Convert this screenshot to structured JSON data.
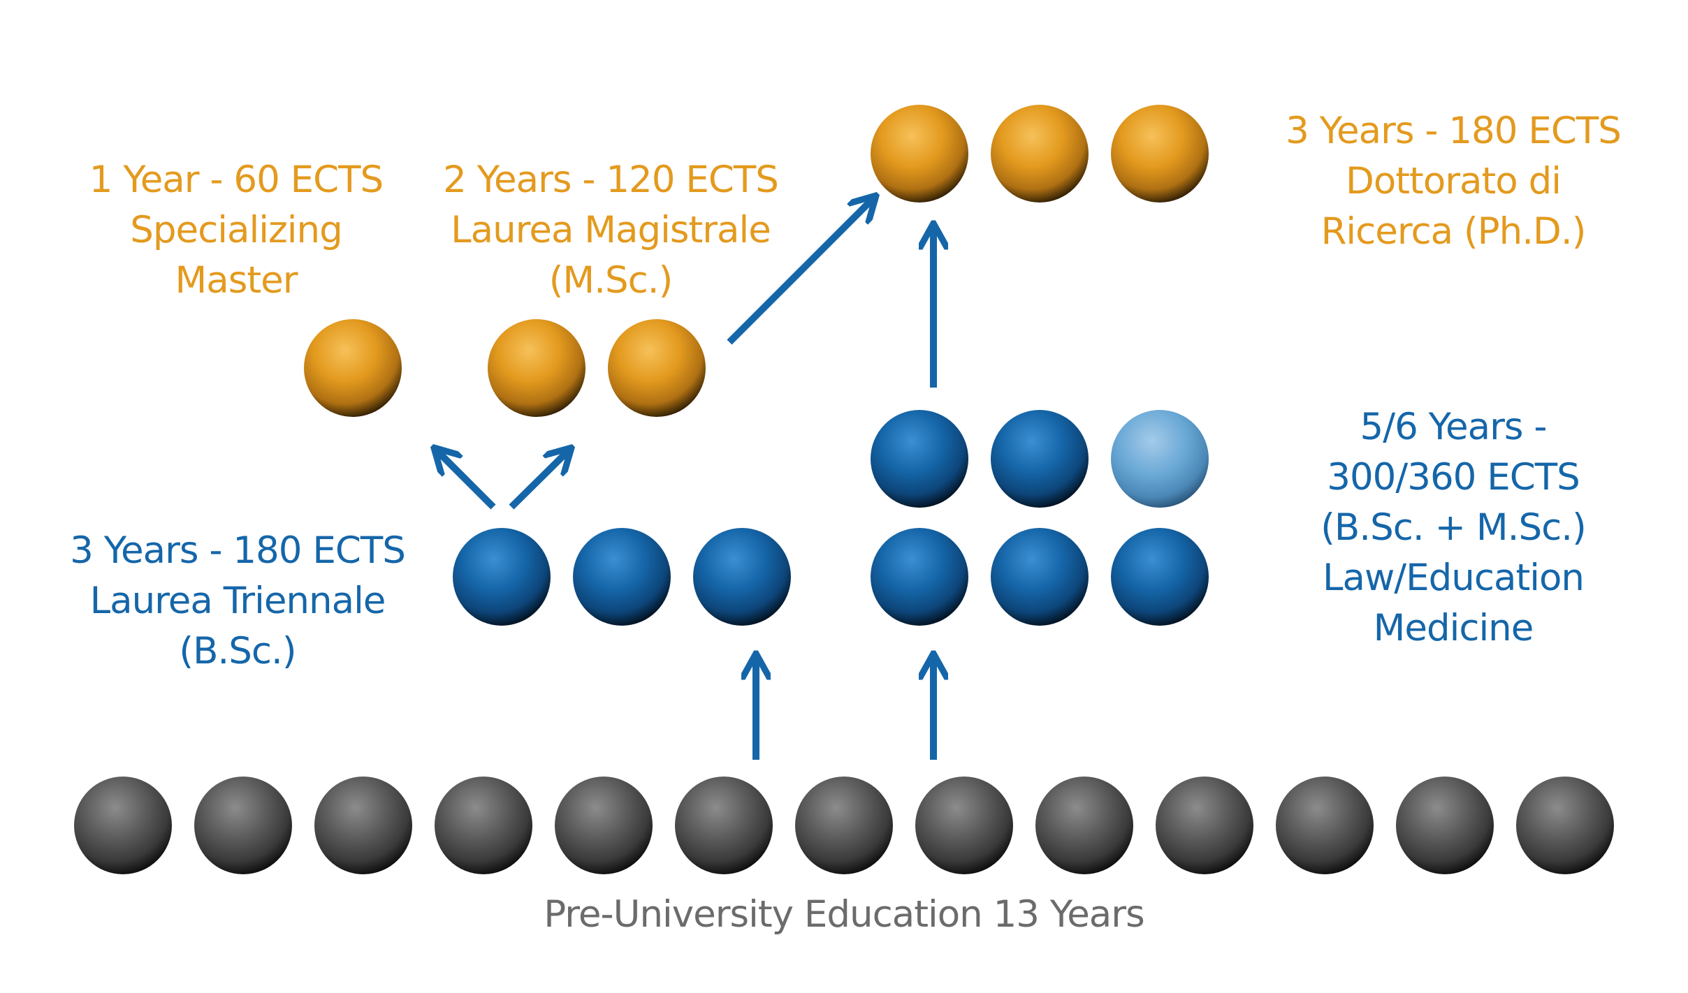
{
  "colors": {
    "orange": "#e39a1e",
    "blue": "#1566a9",
    "light_blue": "#6aa8d6",
    "grey": "#5c5c5c",
    "arrow": "#1566a9"
  },
  "labels": {
    "specializing_master": [
      "1 Year - 60 ECTS",
      "Specializing",
      "Master"
    ],
    "laurea_magistrale": [
      "2 Years - 120 ECTS",
      "Laurea Magistrale",
      "(M.Sc.)"
    ],
    "dottorato": [
      "3 Years - 180 ECTS",
      "Dottorato di",
      "Ricerca (Ph.D.)"
    ],
    "laurea_triennale": [
      "3 Years - 180 ECTS",
      "Laurea Triennale",
      "(B.Sc.)"
    ],
    "single_cycle": [
      "5/6 Years -",
      "300/360 ECTS",
      "(B.Sc. + M.Sc.)",
      "Law/Education",
      "Medicine"
    ],
    "pre_university": "Pre-University Education 13 Years"
  },
  "counts": {
    "pre_university_years": 13,
    "bachelor_years": 3,
    "master_years": 2,
    "specializing_master_years": 1,
    "phd_years": 3,
    "single_cycle_years": "5/6"
  }
}
